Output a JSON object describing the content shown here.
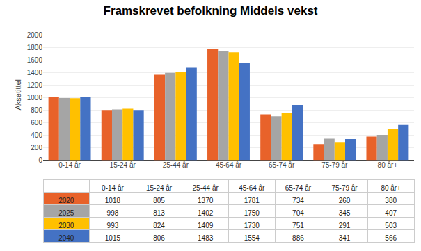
{
  "chart_data": {
    "type": "bar",
    "title": "Framskrevet befolkning Middels vekst",
    "ylabel": "Aksetittel",
    "categories": [
      "0-14 år",
      "15-24 år",
      "25-44 år",
      "45-64 år",
      "65-74 år",
      "75-79 år",
      "80 år+"
    ],
    "series": [
      {
        "name": "2020",
        "color": "#E8622A",
        "values": [
          1018,
          805,
          1370,
          1781,
          734,
          260,
          380
        ]
      },
      {
        "name": "2025",
        "color": "#A5A5A5",
        "values": [
          998,
          813,
          1402,
          1750,
          704,
          345,
          407
        ]
      },
      {
        "name": "2030",
        "color": "#FFC000",
        "values": [
          993,
          824,
          1409,
          1730,
          751,
          291,
          503
        ]
      },
      {
        "name": "2040",
        "color": "#4472C4",
        "values": [
          1015,
          806,
          1483,
          1554,
          886,
          341,
          566
        ]
      }
    ],
    "ylim": [
      0,
      2100
    ],
    "yticks": [
      0,
      200,
      400,
      600,
      800,
      1000,
      1200,
      1400,
      1600,
      1800,
      2000
    ],
    "grid": true
  }
}
